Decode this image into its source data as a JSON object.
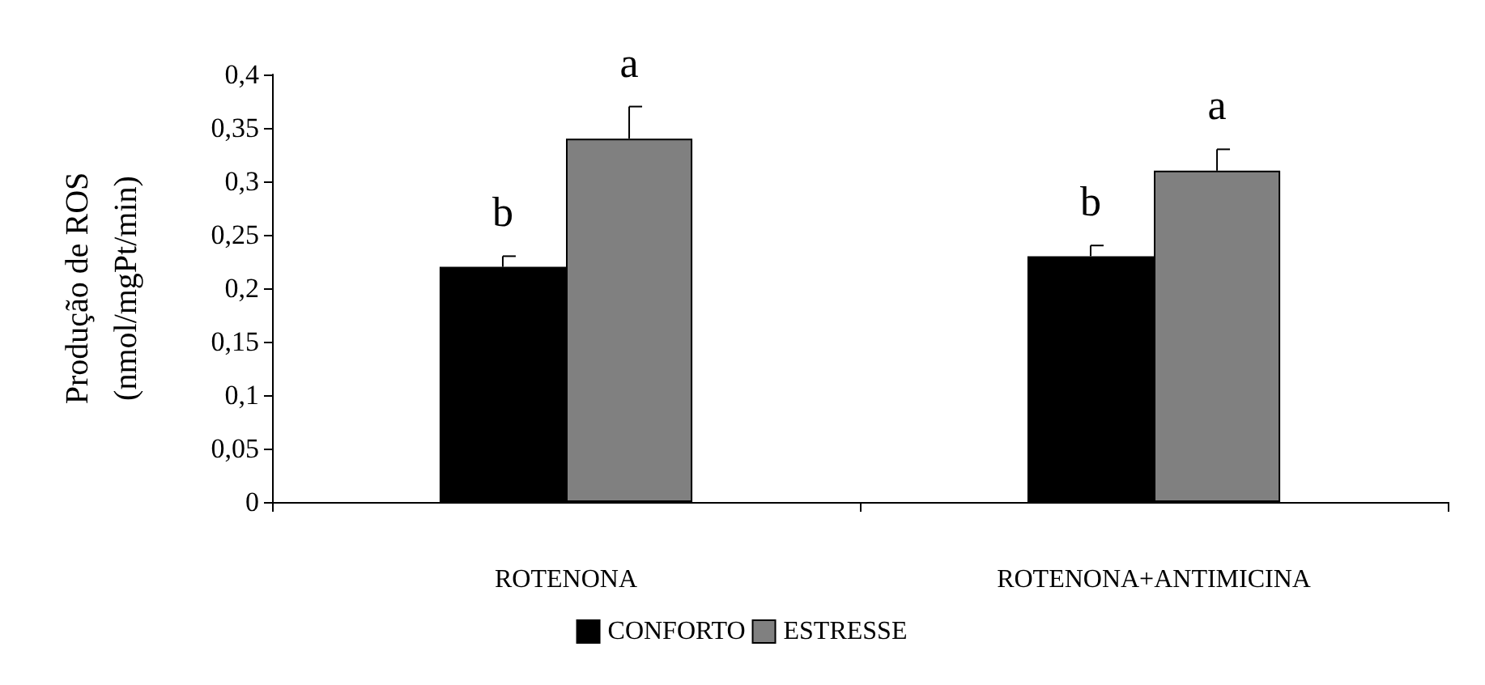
{
  "chart_data": {
    "type": "bar",
    "ylabel": "Produção de ROS\n(nmol/mgPt/min)",
    "categories": [
      "ROTENONA",
      "ROTENONA+ANTIMICINA"
    ],
    "series": [
      {
        "name": "CONFORTO",
        "color": "#000000",
        "values": [
          0.22,
          0.23
        ],
        "errors": [
          [
            0.22,
            0.23
          ],
          [
            0.23,
            0.24
          ]
        ],
        "value_labels": [
          "b",
          "b"
        ]
      },
      {
        "name": "ESTRESSE",
        "color": "#808080",
        "values": [
          0.34,
          0.31
        ],
        "errors": [
          [
            0.34,
            0.37
          ],
          [
            0.31,
            0.33
          ]
        ],
        "value_labels": [
          "a",
          "a"
        ]
      }
    ],
    "ylim": [
      0,
      0.4
    ],
    "yticks": [
      0,
      {
        "value": 0.05,
        "label": "0,05"
      },
      {
        "value": 0.1,
        "label": "0,1"
      },
      {
        "value": 0.15,
        "label": "0,15"
      },
      {
        "value": 0.2,
        "label": "0,2"
      },
      {
        "value": 0.25,
        "label": "0,25"
      },
      {
        "value": 0.3,
        "label": "0,3"
      },
      {
        "value": 0.35,
        "label": "0,35"
      },
      {
        "value": 0.4,
        "label": "0,4"
      }
    ],
    "grid": false,
    "legend": "bottom"
  }
}
